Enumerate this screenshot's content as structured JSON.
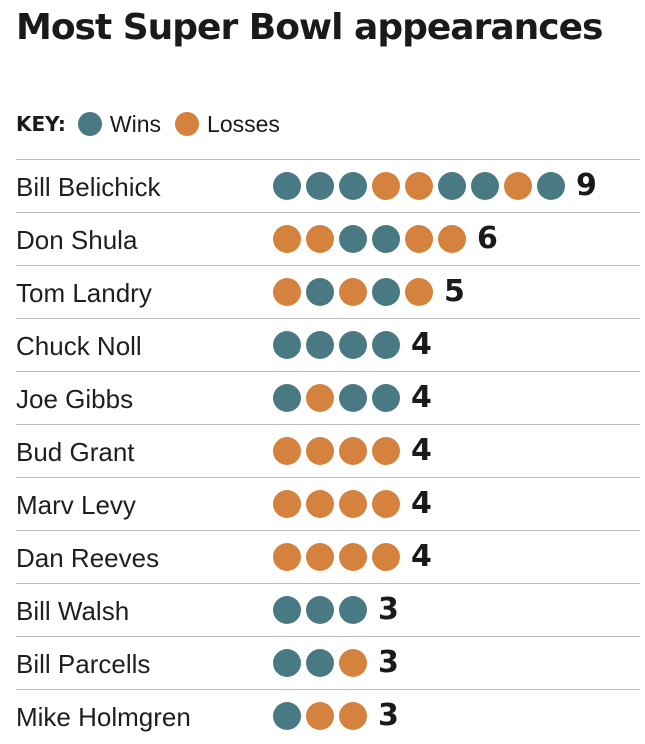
{
  "title": "Most Super Bowl appearances",
  "key": {
    "label": "KEY:",
    "wins_label": "Wins",
    "losses_label": "Losses"
  },
  "colors": {
    "win": "#497a83",
    "loss": "#d4823d"
  },
  "chart_data": {
    "type": "table",
    "title": "Most Super Bowl appearances",
    "legend": [
      "Wins",
      "Losses"
    ],
    "rows": [
      {
        "name": "Bill Belichick",
        "results": [
          "W",
          "W",
          "W",
          "L",
          "L",
          "W",
          "W",
          "L",
          "W"
        ],
        "total": "9"
      },
      {
        "name": "Don Shula",
        "results": [
          "L",
          "L",
          "W",
          "W",
          "L",
          "L"
        ],
        "total": "6"
      },
      {
        "name": "Tom Landry",
        "results": [
          "L",
          "W",
          "L",
          "W",
          "L"
        ],
        "total": "5"
      },
      {
        "name": "Chuck Noll",
        "results": [
          "W",
          "W",
          "W",
          "W"
        ],
        "total": "4"
      },
      {
        "name": "Joe Gibbs",
        "results": [
          "W",
          "L",
          "W",
          "W"
        ],
        "total": "4"
      },
      {
        "name": "Bud Grant",
        "results": [
          "L",
          "L",
          "L",
          "L"
        ],
        "total": "4"
      },
      {
        "name": "Marv Levy",
        "results": [
          "L",
          "L",
          "L",
          "L"
        ],
        "total": "4"
      },
      {
        "name": "Dan Reeves",
        "results": [
          "L",
          "L",
          "L",
          "L"
        ],
        "total": "4"
      },
      {
        "name": "Bill Walsh",
        "results": [
          "W",
          "W",
          "W"
        ],
        "total": "3"
      },
      {
        "name": "Bill Parcells",
        "results": [
          "W",
          "W",
          "L"
        ],
        "total": "3"
      },
      {
        "name": "Mike Holmgren",
        "results": [
          "W",
          "L",
          "L"
        ],
        "total": "3"
      }
    ]
  }
}
